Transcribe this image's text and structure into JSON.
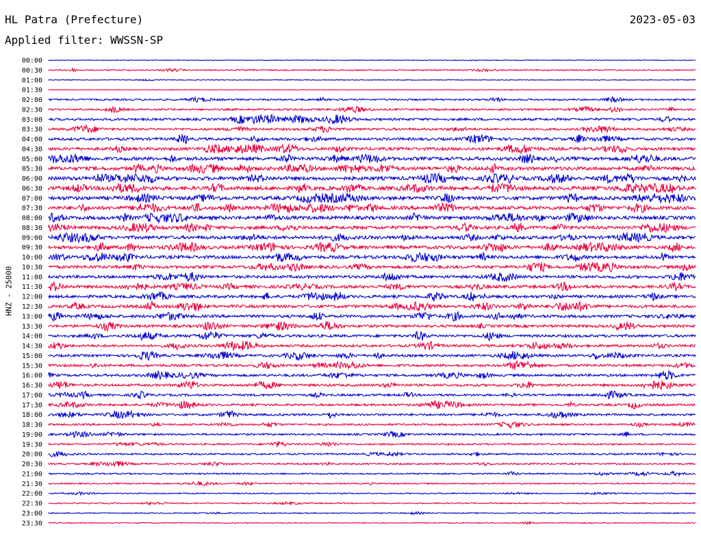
{
  "header": {
    "station": "HL Patra (Prefecture)",
    "date": "2023-05-03",
    "filter": "Applied filter: WWSSN-SP"
  },
  "chart_data": {
    "type": "line",
    "title": "HL Patra (Prefecture)",
    "subtitle": "Applied filter: WWSSN-SP",
    "date": "2023-05-03",
    "ylabel": "HNZ - 25000",
    "row_labels": [
      "00:00",
      "00:30",
      "01:00",
      "01:30",
      "02:00",
      "02:30",
      "03:00",
      "03:30",
      "04:00",
      "04:30",
      "05:00",
      "05:30",
      "06:00",
      "06:30",
      "07:00",
      "07:30",
      "08:00",
      "08:30",
      "09:00",
      "09:30",
      "10:00",
      "10:30",
      "11:00",
      "11:30",
      "12:00",
      "12:30",
      "13:00",
      "13:30",
      "14:00",
      "14:30",
      "15:00",
      "15:30",
      "16:00",
      "16:30",
      "17:00",
      "17:30",
      "18:00",
      "18:30",
      "19:00",
      "19:30",
      "20:00",
      "20:30",
      "21:00",
      "21:30",
      "22:00",
      "22:30",
      "23:00",
      "23:30"
    ],
    "row_activity": [
      0.3,
      1.0,
      0.3,
      0.25,
      1.6,
      1.8,
      2.4,
      2.2,
      2.8,
      3.2,
      3.8,
      3.9,
      4.0,
      4.2,
      4.0,
      4.0,
      3.8,
      3.6,
      3.6,
      3.6,
      3.5,
      3.2,
      3.0,
      3.2,
      3.0,
      3.2,
      3.0,
      2.8,
      2.8,
      2.6,
      2.5,
      2.6,
      2.5,
      2.5,
      2.2,
      2.2,
      2.2,
      1.9,
      1.8,
      1.6,
      1.6,
      1.5,
      1.3,
      1.1,
      0.9,
      0.9,
      0.7,
      0.6
    ],
    "color_cycle": [
      "#0000cc",
      "#e8003c"
    ]
  }
}
